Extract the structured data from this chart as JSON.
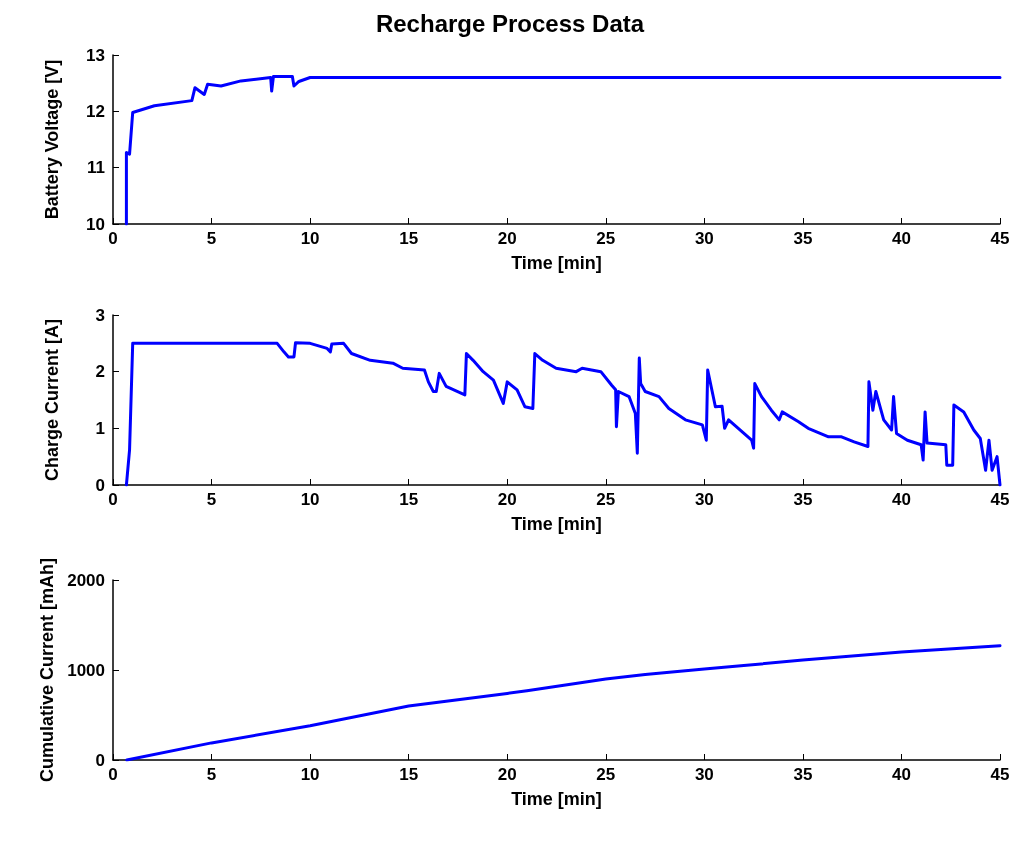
{
  "chart_data": [
    {
      "type": "line",
      "title": "Recharge Process Data",
      "xlabel": "Time [min]",
      "ylabel": "Battery Voltage [V]",
      "xlim": [
        0,
        45
      ],
      "xticks": [
        0,
        5,
        10,
        15,
        20,
        25,
        30,
        35,
        40,
        45
      ],
      "ylim": [
        10,
        13
      ],
      "yticks": [
        10,
        11,
        12,
        13
      ],
      "grid": false,
      "marker": "none",
      "line_style": "solid",
      "series": [
        {
          "color": "#0000ff",
          "x": [
            0.68,
            0.68,
            0.84,
            1.0,
            2.1,
            4.0,
            4.16,
            4.63,
            4.8,
            5.48,
            6.49,
            8.0,
            8.05,
            8.14,
            9.1,
            9.18,
            9.43,
            10.0,
            45
          ],
          "values": [
            10.0,
            11.27,
            11.24,
            11.98,
            12.1,
            12.19,
            12.42,
            12.3,
            12.48,
            12.45,
            12.54,
            12.6,
            12.36,
            12.62,
            12.62,
            12.45,
            12.53,
            12.6,
            12.6
          ]
        }
      ]
    },
    {
      "type": "line",
      "xlabel": "Time [min]",
      "ylabel": "Charge Current [A]",
      "xlim": [
        0,
        45
      ],
      "xticks": [
        0,
        5,
        10,
        15,
        20,
        25,
        30,
        35,
        40,
        45
      ],
      "ylim": [
        0,
        3
      ],
      "yticks": [
        0,
        1,
        2,
        3
      ],
      "grid": false,
      "marker": "none",
      "line_style": "solid",
      "series": [
        {
          "color": "#0000ff",
          "x": [
            0.68,
            0.84,
            1.0,
            8.33,
            8.67,
            8.9,
            9.18,
            9.26,
            10.0,
            10.86,
            11.03,
            11.1,
            11.7,
            12.1,
            13.05,
            14.2,
            14.7,
            15.8,
            16.0,
            16.25,
            16.4,
            16.55,
            16.9,
            17.85,
            17.93,
            18.27,
            18.78,
            19.3,
            19.8,
            20.0,
            20.5,
            20.9,
            21.3,
            21.4,
            21.8,
            22.48,
            23.5,
            23.8,
            24.75,
            25.3,
            25.5,
            25.54,
            25.64,
            26.18,
            26.5,
            26.6,
            26.7,
            26.77,
            27.0,
            27.7,
            28.2,
            29.04,
            29.9,
            30.1,
            30.17,
            30.56,
            30.9,
            31.03,
            31.23,
            32.4,
            32.5,
            32.56,
            32.9,
            33.4,
            33.8,
            33.95,
            34.76,
            35.27,
            36.3,
            36.96,
            37.6,
            38.3,
            38.35,
            38.55,
            38.7,
            39.1,
            39.5,
            39.6,
            39.75,
            40.3,
            41.0,
            41.1,
            41.2,
            41.3,
            42.25,
            42.3,
            42.6,
            42.66,
            43.16,
            43.67,
            44.0,
            44.27,
            44.44,
            44.6,
            44.85,
            45.0
          ],
          "values": [
            0,
            0.62,
            2.5,
            2.5,
            2.35,
            2.26,
            2.26,
            2.51,
            2.5,
            2.41,
            2.35,
            2.49,
            2.5,
            2.32,
            2.2,
            2.15,
            2.06,
            2.03,
            1.82,
            1.65,
            1.65,
            1.97,
            1.74,
            1.59,
            2.32,
            2.2,
            2.0,
            1.85,
            1.44,
            1.82,
            1.68,
            1.38,
            1.35,
            2.32,
            2.2,
            2.06,
            2.0,
            2.06,
            2.0,
            1.76,
            1.68,
            1.03,
            1.65,
            1.56,
            1.26,
            0.56,
            2.24,
            1.79,
            1.65,
            1.56,
            1.35,
            1.15,
            1.06,
            0.79,
            2.03,
            1.38,
            1.39,
            1.0,
            1.15,
            0.79,
            0.65,
            1.79,
            1.56,
            1.32,
            1.15,
            1.29,
            1.12,
            1.0,
            0.85,
            0.85,
            0.76,
            0.68,
            1.82,
            1.32,
            1.65,
            1.15,
            0.97,
            1.56,
            0.91,
            0.79,
            0.71,
            0.44,
            1.29,
            0.74,
            0.71,
            0.35,
            0.35,
            1.41,
            1.29,
            0.97,
            0.82,
            0.26,
            0.79,
            0.26,
            0.5,
            0
          ]
        }
      ]
    },
    {
      "type": "line",
      "xlabel": "Time [min]",
      "ylabel": "Cumulative Current [mAh]",
      "xlim": [
        0,
        45
      ],
      "xticks": [
        0,
        5,
        10,
        15,
        20,
        25,
        30,
        35,
        40,
        45
      ],
      "ylim": [
        0,
        2000
      ],
      "yticks": [
        0,
        1000,
        2000
      ],
      "grid": false,
      "marker": "none",
      "line_style": "solid",
      "series": [
        {
          "color": "#0000ff",
          "x": [
            0.7,
            5,
            10,
            15,
            20,
            21,
            25,
            27,
            30,
            32,
            35,
            40,
            45
          ],
          "values": [
            0,
            190,
            380,
            600,
            740,
            770,
            900,
            950,
            1010,
            1050,
            1110,
            1200,
            1270
          ]
        }
      ]
    }
  ]
}
